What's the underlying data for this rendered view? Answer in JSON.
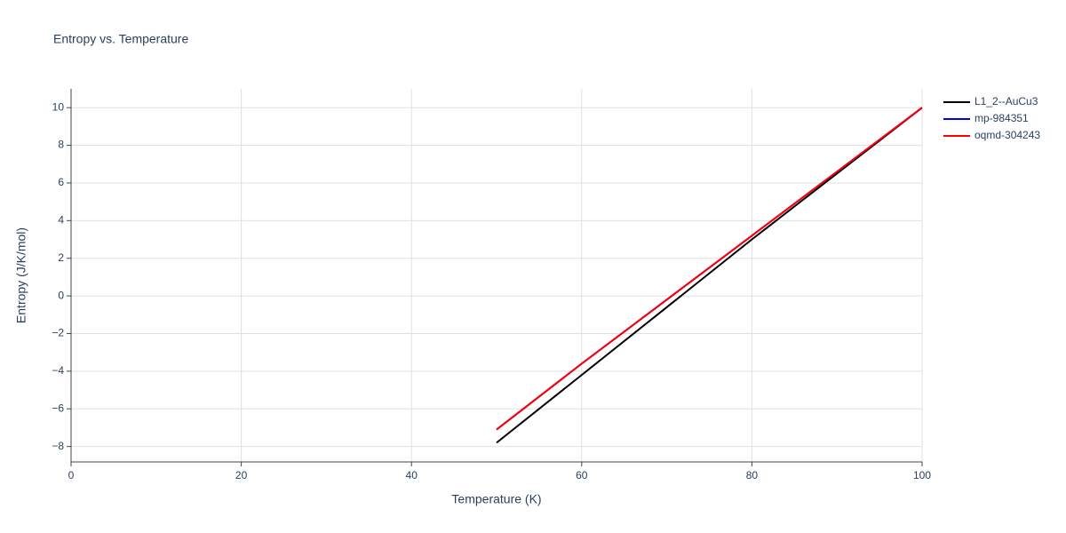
{
  "chart_data": {
    "type": "line",
    "title": "Entropy vs. Temperature",
    "x_label": "Temperature (K)",
    "y_label": "Entropy (J/K/mol)",
    "x": [
      50,
      60,
      70,
      80,
      90,
      100
    ],
    "series": [
      {
        "name": "L1_2--AuCu3",
        "color": "#000000",
        "values": [
          -7.8,
          -4.2,
          -0.6,
          3.0,
          6.5,
          10.0
        ]
      },
      {
        "name": "mp-984351",
        "color": "#0000ff",
        "values": [
          -7.1,
          -3.6,
          -0.2,
          3.2,
          6.6,
          10.0
        ]
      },
      {
        "name": "oqmd-304243",
        "color": "#ff0000",
        "values": [
          -7.1,
          -3.6,
          -0.2,
          3.2,
          6.6,
          10.0
        ]
      }
    ],
    "xlim": [
      0,
      100
    ],
    "xticks": [
      0,
      20,
      40,
      60,
      80,
      100
    ],
    "ylim": [
      -8.82,
      11
    ],
    "yticks": [
      {
        "value": -8,
        "label": "−8"
      },
      {
        "value": -6,
        "label": "−6"
      },
      {
        "value": -4,
        "label": "−4"
      },
      {
        "value": -2,
        "label": "−2"
      },
      0,
      2,
      4,
      6,
      8,
      10
    ],
    "grid": true,
    "legend": "right"
  }
}
